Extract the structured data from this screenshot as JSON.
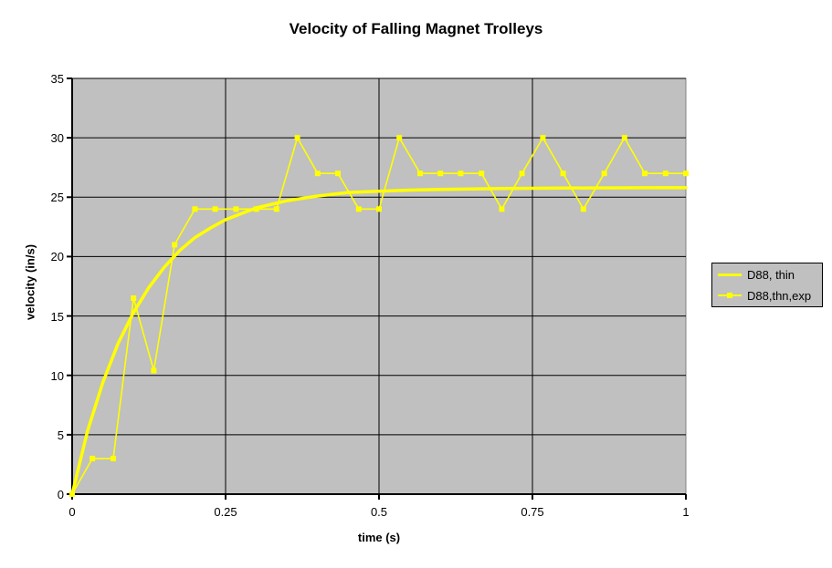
{
  "title": "Velocity of Falling Magnet Trolleys",
  "colors": {
    "series_yellow": "#FFFF00",
    "plot_bg": "#C0C0C0",
    "plot_border": "#808080",
    "grid": "#000000",
    "axis": "#000000",
    "text": "#000000",
    "legend_bg": "#C0C0C0",
    "page_bg": "#FFFFFF"
  },
  "legend": {
    "position": "right",
    "items": [
      {
        "label": "D88, thin",
        "sample": "thick-line"
      },
      {
        "label": "D88,thn,exp",
        "sample": "thin-line-with-square-marker"
      }
    ]
  },
  "chart_data": {
    "type": "line",
    "title": "Velocity of Falling Magnet Trolleys",
    "xlabel": "time (s)",
    "ylabel": "velocity (in/s)",
    "xlim": [
      0,
      1
    ],
    "ylim": [
      0,
      35
    ],
    "xticks": [
      0,
      0.25,
      0.5,
      0.75,
      1
    ],
    "xtick_labels": [
      "0",
      "0.25",
      "0.5",
      "0.75",
      "1"
    ],
    "yticks": [
      0,
      5,
      10,
      15,
      20,
      25,
      30,
      35
    ],
    "ytick_labels": [
      "0",
      "5",
      "10",
      "15",
      "20",
      "25",
      "30",
      "35"
    ],
    "grid": true,
    "plot_background": "gray",
    "legend_position": "right",
    "series": [
      {
        "name": "D88, thin",
        "style": "smooth-thick-line",
        "marker": "none",
        "x": [
          0,
          0.025,
          0.05,
          0.075,
          0.1,
          0.125,
          0.15,
          0.175,
          0.2,
          0.225,
          0.25,
          0.3,
          0.35,
          0.4,
          0.45,
          0.5,
          0.55,
          0.6,
          0.65,
          0.7,
          0.75,
          0.8,
          0.85,
          0.9,
          0.95,
          1
        ],
        "y": [
          0,
          5.3,
          9.4,
          12.7,
          15.3,
          17.4,
          19.1,
          20.5,
          21.6,
          22.4,
          23.1,
          24.1,
          24.7,
          25.1,
          25.4,
          25.5,
          25.6,
          25.65,
          25.7,
          25.73,
          25.75,
          25.77,
          25.78,
          25.79,
          25.8,
          25.8
        ]
      },
      {
        "name": "D88,thn,exp",
        "style": "thin-line",
        "marker": "square",
        "x": [
          0,
          0.033,
          0.067,
          0.1,
          0.133,
          0.167,
          0.2,
          0.233,
          0.267,
          0.3,
          0.333,
          0.367,
          0.4,
          0.433,
          0.467,
          0.5,
          0.533,
          0.567,
          0.6,
          0.633,
          0.667,
          0.7,
          0.733,
          0.767,
          0.8,
          0.833,
          0.867,
          0.9,
          0.933,
          0.967,
          1
        ],
        "y": [
          0,
          3,
          3,
          16.5,
          10.4,
          21,
          24,
          24,
          24,
          24,
          24,
          30,
          27,
          27,
          24,
          24,
          30,
          27,
          27,
          27,
          27,
          24,
          27,
          30,
          27,
          24,
          27,
          30,
          27,
          27,
          27
        ]
      }
    ]
  }
}
